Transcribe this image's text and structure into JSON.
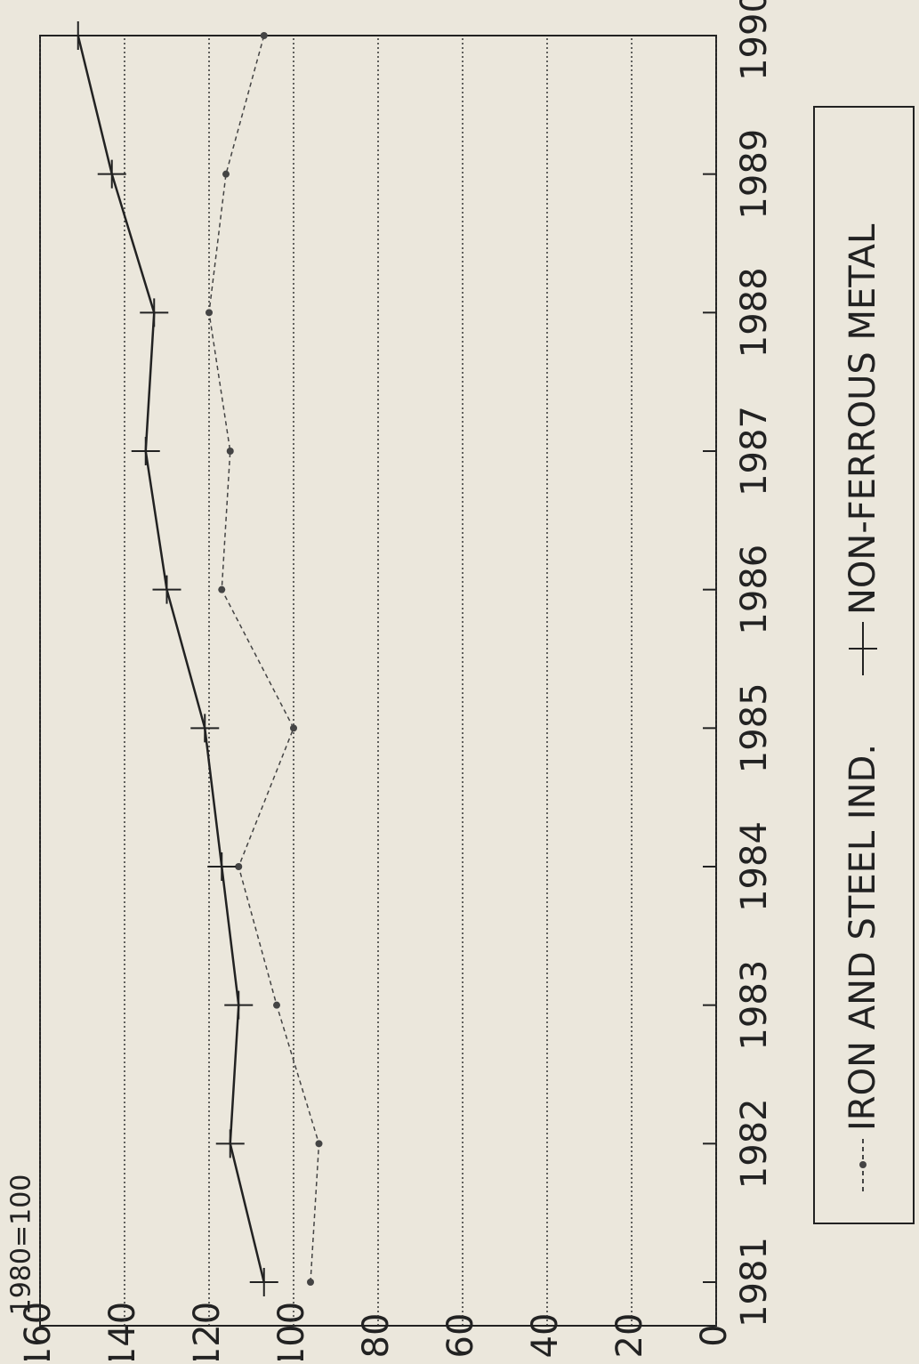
{
  "chart_data": {
    "type": "line",
    "title": "1980=100",
    "x": [
      1981,
      1982,
      1983,
      1984,
      1985,
      1986,
      1987,
      1988,
      1989,
      1990
    ],
    "xlim": [
      1981,
      1990
    ],
    "xticks": [
      1981,
      1982,
      1983,
      1984,
      1985,
      1986,
      1987,
      1988,
      1989,
      1990
    ],
    "ylim": [
      0,
      160
    ],
    "yticks": [
      0,
      20,
      40,
      60,
      80,
      100,
      120,
      140,
      160
    ],
    "grid": true,
    "legend": "bottom",
    "series": [
      {
        "name": "IRON AND STEEL IND.",
        "color": "#444444",
        "dash": true,
        "marker": "dot",
        "values": [
          96,
          94,
          104,
          113,
          100,
          117,
          115,
          120,
          116,
          107
        ]
      },
      {
        "name": "NON-FERROUS METAL",
        "color": "#222222",
        "dash": false,
        "marker": "plus",
        "values": [
          107,
          115,
          113,
          117,
          121,
          130,
          135,
          133,
          143,
          151
        ]
      }
    ]
  }
}
